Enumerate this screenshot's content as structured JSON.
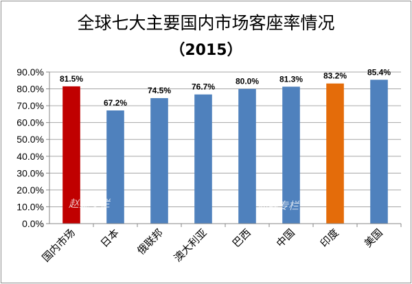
{
  "chart_data": {
    "type": "bar",
    "title": "全球七大主要国内市场客座率情况",
    "subtitle": "（2015）",
    "categories": [
      "国内市场",
      "日本",
      "俄联邦",
      "澳大利亚",
      "巴西",
      "中国",
      "印度",
      "美国"
    ],
    "values": [
      81.5,
      67.2,
      74.5,
      76.7,
      80.0,
      81.3,
      83.2,
      85.4
    ],
    "data_labels": [
      "81.5%",
      "67.2%",
      "74.5%",
      "76.7%",
      "80.0%",
      "81.3%",
      "83.2%",
      "85.4%"
    ],
    "bar_colors": [
      "#c00000",
      "#4f81bd",
      "#4f81bd",
      "#4f81bd",
      "#4f81bd",
      "#4f81bd",
      "#e46c0a",
      "#4f81bd"
    ],
    "ylim": [
      0,
      90
    ],
    "ytick_values": [
      0,
      10,
      20,
      30,
      40,
      50,
      60,
      70,
      80,
      90
    ],
    "ytick_labels": [
      "0.0%",
      "10.0%",
      "20.0%",
      "30.0%",
      "40.0%",
      "50.0%",
      "60.0%",
      "70.0%",
      "80.0%",
      "90.0%"
    ],
    "grid": true,
    "legend": "none",
    "watermarks": [
      "赵巍专栏",
      "赵巍专栏"
    ]
  }
}
